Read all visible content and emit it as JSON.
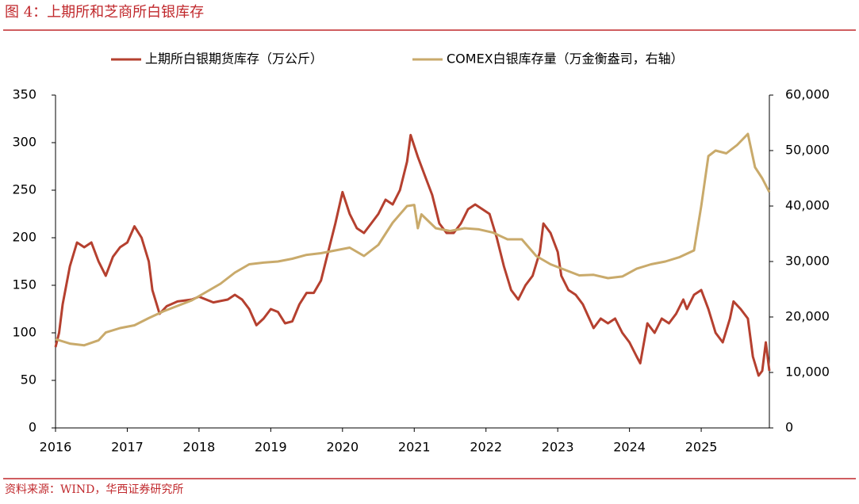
{
  "chart_data": {
    "type": "line",
    "title": "图 4：上期所和芝商所白银库存",
    "source": "资料来源：WIND，华西证券研究所",
    "xlim": [
      2016,
      2025.95
    ],
    "xticks": [
      2016,
      2017,
      2018,
      2019,
      2020,
      2021,
      2022,
      2023,
      2024,
      2025
    ],
    "ylim": [
      0,
      350
    ],
    "yticks": [
      0,
      50,
      100,
      150,
      200,
      250,
      300,
      350
    ],
    "y2lim": [
      0,
      60000
    ],
    "y2ticks": [
      0,
      {
        "value": 10000,
        "label": "10,000"
      },
      {
        "value": 20000,
        "label": "20,000"
      },
      {
        "value": 30000,
        "label": "30,000"
      },
      {
        "value": 40000,
        "label": "40,000"
      },
      {
        "value": 50000,
        "label": "50,000"
      },
      {
        "value": 60000,
        "label": "60,000"
      }
    ],
    "grid": false,
    "series": [
      {
        "name": "上期所白银期货库存（万公斤）",
        "color": "#b5402f",
        "x": [
          2016.0,
          2016.05,
          2016.1,
          2016.2,
          2016.3,
          2016.4,
          2016.5,
          2016.6,
          2016.7,
          2016.8,
          2016.9,
          2017.0,
          2017.1,
          2017.2,
          2017.3,
          2017.35,
          2017.45,
          2017.55,
          2017.7,
          2017.9,
          2018.0,
          2018.2,
          2018.4,
          2018.5,
          2018.6,
          2018.7,
          2018.8,
          2018.9,
          2019.0,
          2019.1,
          2019.2,
          2019.3,
          2019.4,
          2019.5,
          2019.6,
          2019.7,
          2019.8,
          2019.9,
          2020.0,
          2020.1,
          2020.2,
          2020.3,
          2020.4,
          2020.5,
          2020.6,
          2020.7,
          2020.8,
          2020.9,
          2020.95,
          2021.05,
          2021.15,
          2021.25,
          2021.35,
          2021.45,
          2021.55,
          2021.65,
          2021.75,
          2021.85,
          2021.95,
          2022.05,
          2022.15,
          2022.25,
          2022.35,
          2022.45,
          2022.55,
          2022.65,
          2022.75,
          2022.8,
          2022.9,
          2023.0,
          2023.05,
          2023.15,
          2023.25,
          2023.35,
          2023.5,
          2023.6,
          2023.7,
          2023.8,
          2023.9,
          2024.0,
          2024.1,
          2024.15,
          2024.25,
          2024.35,
          2024.45,
          2024.55,
          2024.65,
          2024.75,
          2024.8,
          2024.9,
          2025.0,
          2025.1,
          2025.2,
          2025.3,
          2025.4,
          2025.45,
          2025.55,
          2025.65,
          2025.72,
          2025.8,
          2025.85,
          2025.9,
          2025.95
        ],
        "values": [
          85,
          100,
          130,
          170,
          195,
          190,
          195,
          175,
          160,
          180,
          190,
          195,
          212,
          200,
          175,
          145,
          120,
          128,
          133,
          135,
          138,
          132,
          135,
          140,
          135,
          125,
          108,
          115,
          125,
          122,
          110,
          112,
          130,
          142,
          142,
          155,
          185,
          215,
          248,
          225,
          210,
          205,
          215,
          225,
          240,
          235,
          250,
          280,
          308,
          285,
          265,
          245,
          215,
          205,
          205,
          215,
          230,
          235,
          230,
          225,
          200,
          170,
          145,
          135,
          150,
          160,
          185,
          215,
          205,
          185,
          160,
          145,
          140,
          130,
          105,
          115,
          110,
          115,
          100,
          90,
          75,
          68,
          110,
          100,
          115,
          110,
          120,
          135,
          125,
          140,
          145,
          125,
          100,
          90,
          115,
          133,
          125,
          115,
          75,
          55,
          60,
          90,
          60
        ]
      },
      {
        "name": "COMEX白银库存量（万金衡盎司，右轴）",
        "color": "#c9aa6b",
        "axis": "y2",
        "x": [
          2016.0,
          2016.2,
          2016.4,
          2016.6,
          2016.7,
          2016.9,
          2017.1,
          2017.3,
          2017.5,
          2017.7,
          2017.9,
          2018.1,
          2018.3,
          2018.5,
          2018.7,
          2018.9,
          2019.1,
          2019.3,
          2019.5,
          2019.7,
          2019.9,
          2020.1,
          2020.3,
          2020.5,
          2020.7,
          2020.9,
          2021.0,
          2021.05,
          2021.1,
          2021.3,
          2021.5,
          2021.7,
          2021.9,
          2022.1,
          2022.3,
          2022.5,
          2022.7,
          2022.9,
          2023.1,
          2023.3,
          2023.5,
          2023.7,
          2023.9,
          2024.1,
          2024.3,
          2024.5,
          2024.7,
          2024.9,
          2025.0,
          2025.1,
          2025.2,
          2025.35,
          2025.5,
          2025.65,
          2025.75,
          2025.85,
          2025.95
        ],
        "values": [
          16000,
          15200,
          14900,
          15800,
          17200,
          18000,
          18500,
          19800,
          21000,
          22000,
          23000,
          24500,
          26000,
          28000,
          29500,
          29800,
          30000,
          30500,
          31200,
          31500,
          32000,
          32500,
          31000,
          33000,
          37000,
          40000,
          40200,
          36000,
          38500,
          36000,
          35500,
          36000,
          35800,
          35200,
          34000,
          34000,
          31000,
          29500,
          28500,
          27500,
          27600,
          27000,
          27300,
          28700,
          29500,
          30000,
          30800,
          32000,
          40000,
          49000,
          50000,
          49500,
          51000,
          53000,
          47000,
          45000,
          42500
        ]
      }
    ]
  }
}
